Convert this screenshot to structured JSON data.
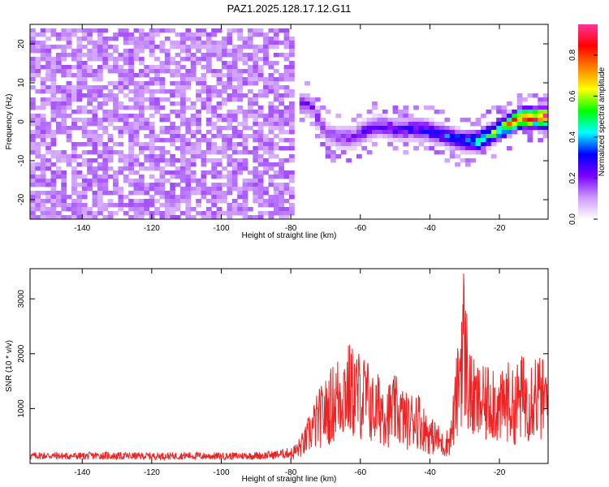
{
  "title": "PAZ1.2025.128.17.12.G11",
  "chart_data": [
    {
      "type": "heatmap",
      "title": "PAZ1.2025.128.17.12.G11",
      "xlabel": "Height of straight line (km)",
      "ylabel": "Frequency (Hz)",
      "xlim": [
        -155,
        -6
      ],
      "ylim": [
        -25,
        25
      ],
      "xticks": [
        -140,
        -120,
        -100,
        -80,
        -60,
        -40,
        -20
      ],
      "yticks": [
        -20,
        -10,
        0,
        10,
        20
      ],
      "colorbar": {
        "label": "Normalized spectral amplitude",
        "range": [
          0,
          0.95
        ],
        "ticks": [
          0.0,
          0.2,
          0.4,
          0.6,
          0.8
        ],
        "tick_labels": [
          "0.0",
          "0.2",
          "0.4",
          "0.6",
          "0.8"
        ],
        "colormap": [
          "#ffffff",
          "#cc99ff",
          "#7a00ff",
          "#0000ff",
          "#00ffff",
          "#00ff00",
          "#ffff00",
          "#ff8000",
          "#ff0000",
          "#ff3399"
        ]
      },
      "noise_region": {
        "x": [
          -155,
          -79
        ],
        "y": [
          -25,
          24
        ],
        "typical_amplitude": 0.1
      },
      "signal_track": [
        {
          "x": -78,
          "freq": 5,
          "amp": 0.25
        },
        {
          "x": -74,
          "freq": 4,
          "amp": 0.22
        },
        {
          "x": -70,
          "freq": -3,
          "amp": 0.18
        },
        {
          "x": -66,
          "freq": -4,
          "amp": 0.2
        },
        {
          "x": -62,
          "freq": -4,
          "amp": 0.22
        },
        {
          "x": -58,
          "freq": -2,
          "amp": 0.25
        },
        {
          "x": -54,
          "freq": -1,
          "amp": 0.24
        },
        {
          "x": -50,
          "freq": -2,
          "amp": 0.26
        },
        {
          "x": -46,
          "freq": -2,
          "amp": 0.28
        },
        {
          "x": -42,
          "freq": -2,
          "amp": 0.3
        },
        {
          "x": -38,
          "freq": -3,
          "amp": 0.32
        },
        {
          "x": -34,
          "freq": -4,
          "amp": 0.35
        },
        {
          "x": -30,
          "freq": -5,
          "amp": 0.4
        },
        {
          "x": -26,
          "freq": -5,
          "amp": 0.5
        },
        {
          "x": -22,
          "freq": -3,
          "amp": 0.55
        },
        {
          "x": -18,
          "freq": -1,
          "amp": 0.7
        },
        {
          "x": -14,
          "freq": 1,
          "amp": 0.85
        },
        {
          "x": -10,
          "freq": 1,
          "amp": 0.92
        },
        {
          "x": -6,
          "freq": 1,
          "amp": 0.95
        }
      ]
    },
    {
      "type": "line",
      "xlabel": "Height of straight line (km)",
      "ylabel": "SNR (10 * v/v)",
      "xlim": [
        -155,
        -6
      ],
      "ylim": [
        0,
        3550
      ],
      "xticks": [
        -140,
        -120,
        -100,
        -80,
        -60,
        -40,
        -20
      ],
      "yticks": [
        1000,
        2000,
        3000
      ],
      "series": [
        {
          "color": "#ee2222",
          "x": [
            -155,
            -150,
            -145,
            -140,
            -135,
            -130,
            -125,
            -120,
            -115,
            -110,
            -105,
            -100,
            -95,
            -90,
            -85,
            -80,
            -78,
            -76,
            -74,
            -72,
            -70,
            -68,
            -66,
            -64,
            -62,
            -60,
            -58,
            -56,
            -54,
            -52,
            -50,
            -48,
            -46,
            -44,
            -42,
            -40,
            -38,
            -36,
            -34,
            -32,
            -30.5,
            -29,
            -28,
            -26,
            -24,
            -22,
            -20,
            -18,
            -16,
            -14,
            -12,
            -10,
            -8,
            -6
          ],
          "y": [
            150,
            160,
            150,
            150,
            160,
            150,
            150,
            150,
            150,
            160,
            150,
            150,
            150,
            160,
            170,
            220,
            330,
            500,
            800,
            1050,
            1200,
            1400,
            1600,
            1750,
            1650,
            1600,
            1500,
            1200,
            1350,
            1150,
            1250,
            1100,
            950,
            1150,
            850,
            650,
            600,
            400,
            600,
            1700,
            3000,
            2000,
            1500,
            1400,
            1350,
            1600,
            1200,
            1500,
            1300,
            1550,
            1500,
            1700,
            1500,
            1450
          ]
        }
      ]
    }
  ]
}
